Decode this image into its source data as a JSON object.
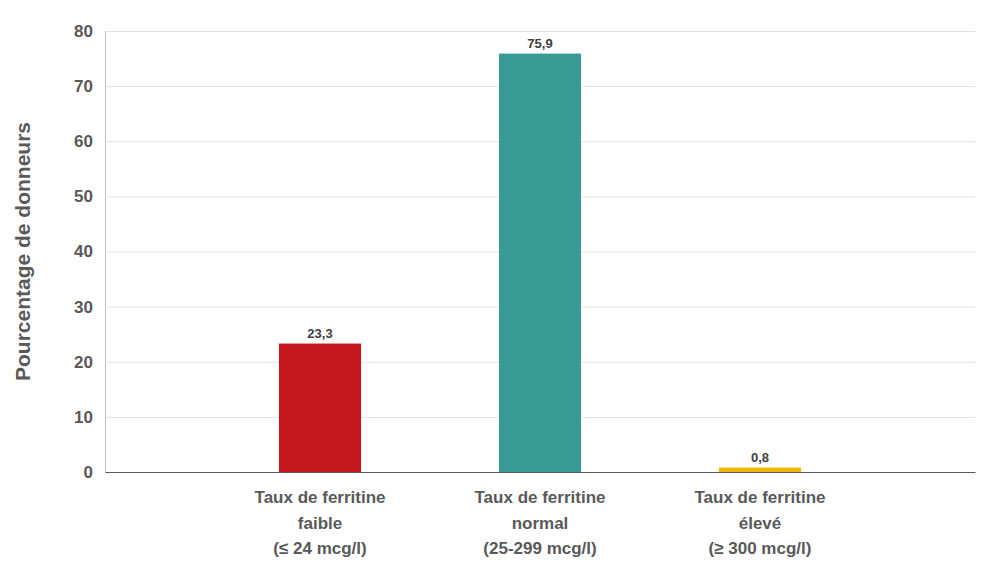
{
  "chart_data": {
    "type": "bar",
    "y_label": "Pourcentage de donneurs",
    "categories": [
      "Taux de ferritine\nfaible\n(≤ 24 mcg/l)",
      "Taux de ferritine\nnormal\n(25-299 mcg/l)",
      "Taux de ferritine\nélevé\n(≥ 300 mcg/l)"
    ],
    "values": [
      23.3,
      75.9,
      0.8
    ],
    "value_labels": [
      "23,3",
      "75,9",
      "0,8"
    ],
    "colors": [
      "#c4161c",
      "#379a94",
      "#f0b400"
    ],
    "ylim": [
      0,
      80
    ],
    "yticks": [
      0,
      10,
      20,
      30,
      40,
      50,
      60,
      70,
      80
    ],
    "grid": true,
    "data_labels": true
  }
}
